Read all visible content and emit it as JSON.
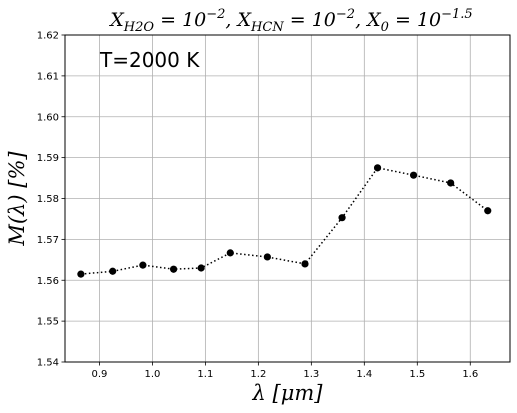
{
  "chart_data": {
    "type": "line",
    "title": "X_{H2O} = 10^{-2}, X_{HCN} = 10^{-2}, X_0 = 10^{-1.5}",
    "title_parts": {
      "h2o_sub": "H2O",
      "hcn_sub": "HCN",
      "zero_sub": "0",
      "exp1": "−2",
      "exp2": "−2",
      "exp3": "−1.5",
      "base": "10"
    },
    "annotation": "T=2000 K",
    "xlabel": "λ [μm]",
    "ylabel": "M(λ) [%]",
    "xlim": [
      0.835,
      1.675
    ],
    "ylim": [
      1.54,
      1.62
    ],
    "xticks": [
      "0.9",
      "1.0",
      "1.1",
      "1.2",
      "1.3",
      "1.4",
      "1.5",
      "1.6"
    ],
    "yticks": [
      "1.54",
      "1.55",
      "1.56",
      "1.57",
      "1.58",
      "1.59",
      "1.60",
      "1.61",
      "1.62"
    ],
    "grid": true,
    "marker_color": "#000000",
    "line_style": "dotted",
    "series": [
      {
        "x": [
          0.865,
          0.925,
          0.982,
          1.04,
          1.092,
          1.147,
          1.217,
          1.288,
          1.358,
          1.425,
          1.493,
          1.563,
          1.633
        ],
        "values": [
          1.5615,
          1.5622,
          1.5637,
          1.5627,
          1.563,
          1.5667,
          1.5657,
          1.564,
          1.5753,
          1.5875,
          1.5857,
          1.5838,
          1.577
        ]
      }
    ]
  }
}
